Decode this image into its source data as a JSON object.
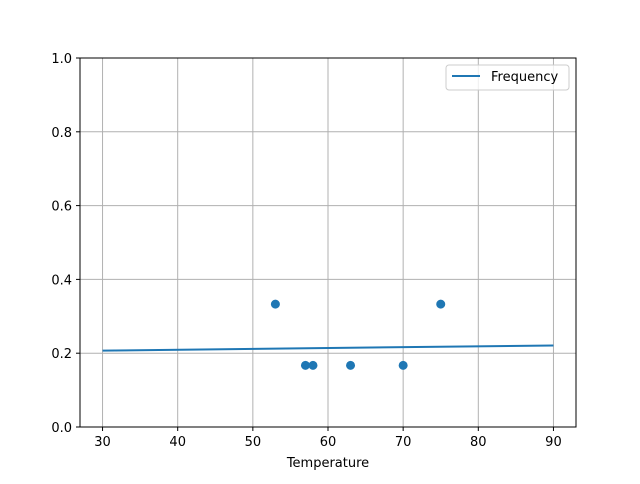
{
  "chart_data": {
    "type": "scatter",
    "title": "",
    "xlabel": "Temperature",
    "ylabel": "",
    "xlim": [
      27,
      93
    ],
    "ylim": [
      0,
      1.0
    ],
    "xticks": [
      "30",
      "40",
      "50",
      "60",
      "70",
      "80",
      "90"
    ],
    "yticks": [
      "0.0",
      "0.2",
      "0.4",
      "0.6",
      "0.8",
      "1.0"
    ],
    "grid": true,
    "legend_position": "top-right",
    "color": "#1f77b4",
    "scatter": {
      "x": [
        53,
        57,
        58,
        63,
        70,
        75
      ],
      "y": [
        0.333,
        0.167,
        0.167,
        0.167,
        0.167,
        0.333
      ]
    },
    "series": [
      {
        "name": "Frequency",
        "type": "line",
        "x": [
          30,
          90
        ],
        "y": [
          0.207,
          0.221
        ]
      }
    ]
  }
}
